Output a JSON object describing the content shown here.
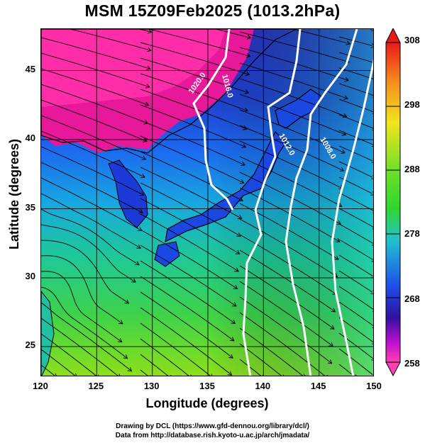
{
  "title": "MSM 15Z09Feb2025 (1013.2hPa)",
  "map": {
    "x_axis": {
      "label": "Longitude (degrees)",
      "ticks": [
        "120",
        "125",
        "130",
        "135",
        "140",
        "145",
        "150"
      ],
      "range": [
        120,
        150
      ]
    },
    "y_axis": {
      "label": "Latitude  (degrees)",
      "ticks": [
        "25",
        "30",
        "35",
        "40",
        "45"
      ],
      "range": [
        22.4,
        47.6
      ]
    },
    "isobar_labels": [
      "1020.0",
      "1016.0",
      "1012.0",
      "1008.0"
    ],
    "overlay": "streamlines",
    "colors": {
      "isobar": "#ffffff",
      "coast": "#000000",
      "grid": "#000000"
    }
  },
  "colorbar": {
    "ticks": [
      "308",
      "298",
      "288",
      "278",
      "268",
      "258"
    ],
    "range": [
      258,
      308
    ],
    "colors": [
      "#e81a1a",
      "#f58a1e",
      "#f2e51c",
      "#2fd62f",
      "#22c0d0",
      "#1e50e8",
      "#3010a0",
      "#c010d0",
      "#ff40b0"
    ]
  },
  "credits": {
    "line1": "Drawing by DCL (https://www.gfd-dennou.org/library/dcl/)",
    "line2": "Data from http://database.rish.kyoto-u.ac.jp/arch/jmadata/"
  }
}
